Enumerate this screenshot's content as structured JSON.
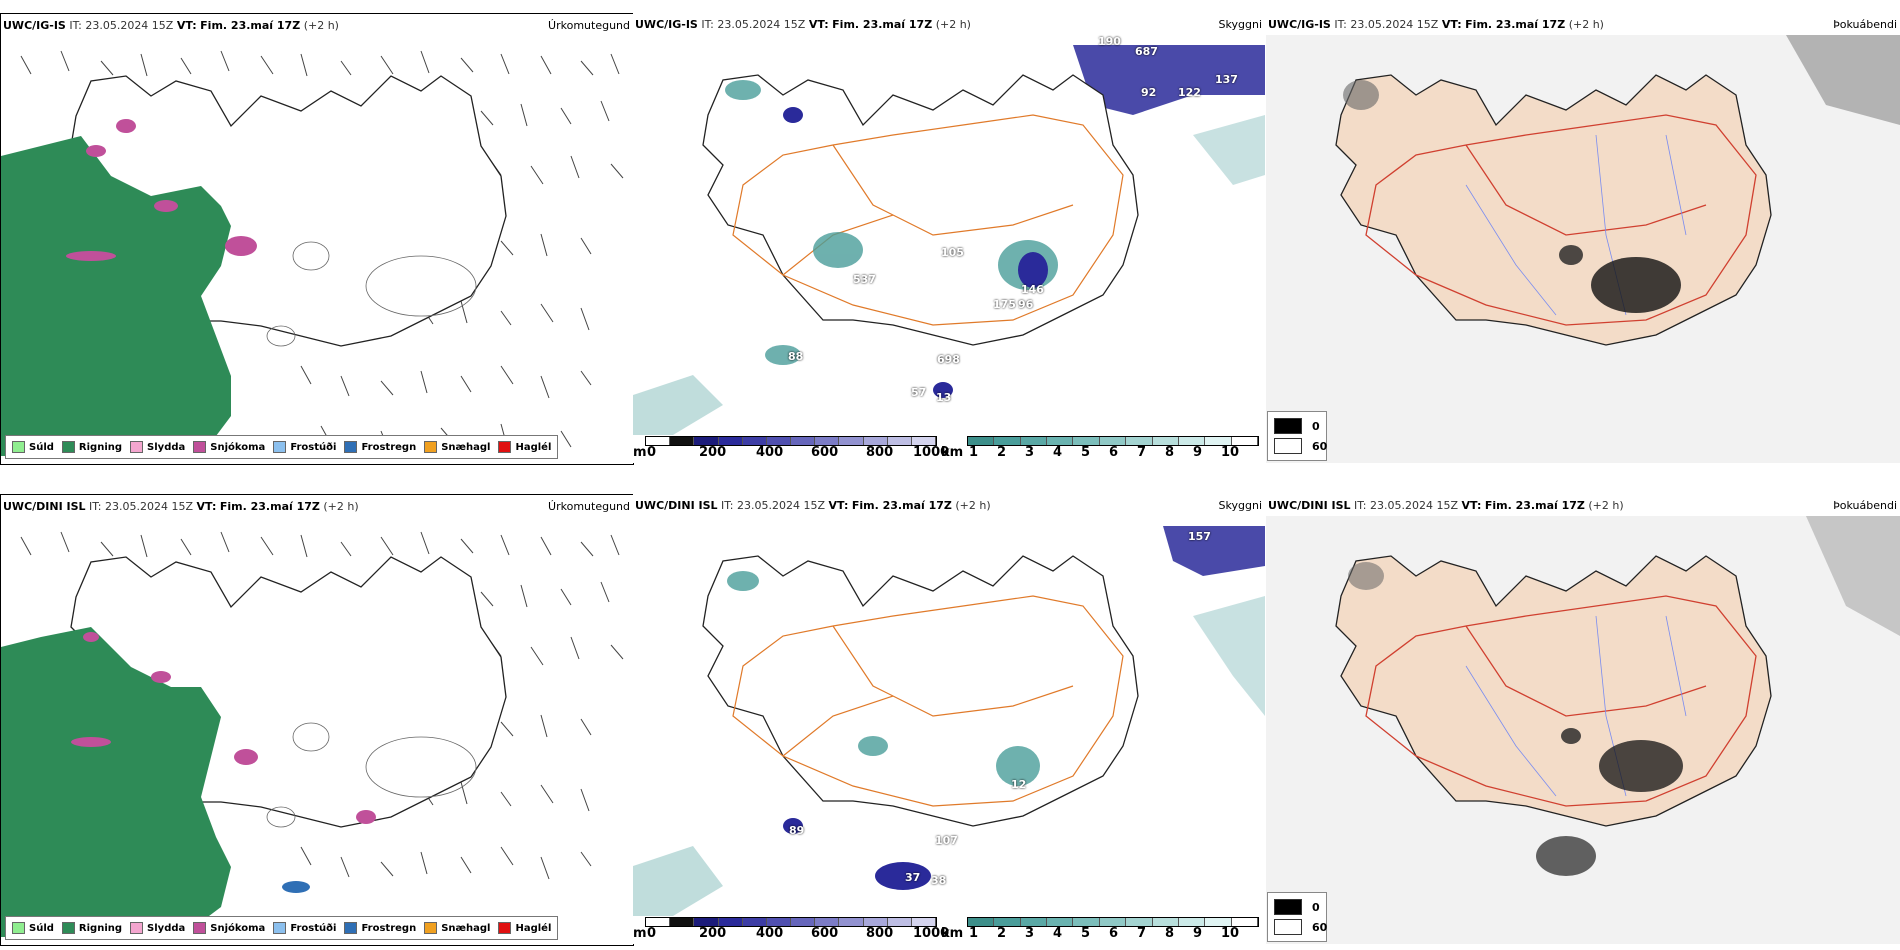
{
  "rows": [
    {
      "model": "UWC/IG-IS",
      "it_label": "IT:",
      "it_value": "23.05.2024 15Z",
      "vt_label": "VT:",
      "vt_value": "Fim. 23.maí 17Z",
      "lead": "(+2 h)",
      "vis_labels": [
        "190",
        "687",
        "92",
        "122",
        "137",
        "146",
        "175",
        "96",
        "537",
        "698",
        "57",
        "13",
        "88",
        "105"
      ]
    },
    {
      "model": "UWC/DINI ISL",
      "it_label": "IT:",
      "it_value": "23.05.2024 15Z",
      "vt_label": "VT:",
      "vt_value": "Fim. 23.maí 17Z",
      "lead": "(+2 h)",
      "vis_labels": [
        "157",
        "12",
        "89",
        "37",
        "38",
        "107"
      ]
    }
  ],
  "panels": {
    "precip": {
      "var_title": "Úrkomutegund"
    },
    "visibility": {
      "var_title": "Skyggni"
    },
    "fog": {
      "var_title": "Þokuábendi"
    }
  },
  "precip_legend": [
    {
      "label": "Súld",
      "color": "#90ee90"
    },
    {
      "label": "Rigning",
      "color": "#2e8b57"
    },
    {
      "label": "Slydda",
      "color": "#f4a6cf"
    },
    {
      "label": "Snjókoma",
      "color": "#c0509a"
    },
    {
      "label": "Frostúði",
      "color": "#8cc0ee"
    },
    {
      "label": "Frostregn",
      "color": "#2f6fb5"
    },
    {
      "label": "Snæhagl",
      "color": "#f0a020"
    },
    {
      "label": "Haglél",
      "color": "#e01010"
    }
  ],
  "cloud_base_scale": {
    "unit": "m",
    "ticks": [
      "0",
      "200",
      "400",
      "600",
      "800",
      "1000"
    ]
  },
  "visibility_scale": {
    "unit": "km",
    "ticks": [
      "1",
      "2",
      "3",
      "4",
      "5",
      "6",
      "7",
      "8",
      "9",
      "10"
    ]
  },
  "fog_scale": {
    "ticks": [
      "0",
      "60"
    ]
  },
  "colors": {
    "rain": "#2e8b57",
    "snow": "#c0509a",
    "cloud_base": "#2a2a9a",
    "visibility": "#4a9d9a",
    "roads": "#e07a2a",
    "land_fog": "#f3dcc8",
    "rivers": "#7a8cf0"
  }
}
